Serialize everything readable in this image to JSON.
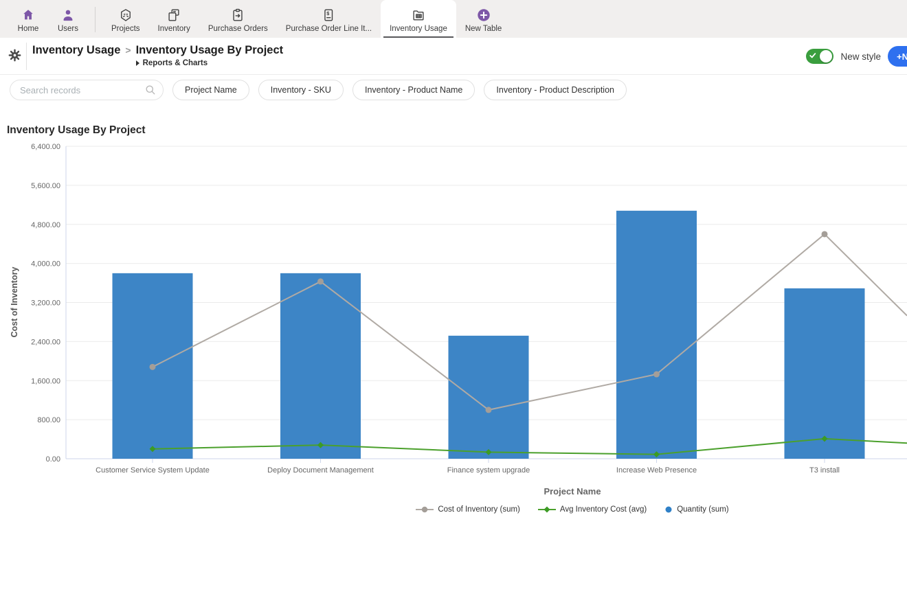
{
  "nav": {
    "items": [
      {
        "label": "Home"
      },
      {
        "label": "Users"
      },
      {
        "label": "Projects"
      },
      {
        "label": "Inventory"
      },
      {
        "label": "Purchase Orders"
      },
      {
        "label": "Purchase Order Line It..."
      },
      {
        "label": "Inventory Usage",
        "active": true
      },
      {
        "label": "New Table"
      }
    ],
    "accent_color": "#7d57a7"
  },
  "breadcrumb": {
    "table": "Inventory Usage",
    "separator": ">",
    "report": "Inventory Usage By Project",
    "section": "Reports & Charts"
  },
  "header_actions": {
    "new_style_label": "New style",
    "toggle_on": true,
    "toggle_color": "#3a9e3e",
    "new_button_label": "+N",
    "new_button_color": "#2e70ef"
  },
  "filters": {
    "search_placeholder": "Search records",
    "search_value": "",
    "chips": [
      "Project Name",
      "Inventory - SKU",
      "Inventory - Product Name",
      "Inventory - Product Description"
    ]
  },
  "chart": {
    "title": "Inventory Usage By Project"
  },
  "chart_data": {
    "type": "combo",
    "title": "Inventory Usage By Project",
    "categories": [
      "Customer Service System Update",
      "Deploy Document Management",
      "Finance system upgrade",
      "Increase Web Presence",
      "T3 install"
    ],
    "series": [
      {
        "name": "Quantity (sum)",
        "type": "bar",
        "color": "#3d85c6",
        "values": [
          3800,
          3800,
          2520,
          5080,
          3490
        ]
      },
      {
        "name": "Cost of Inventory (sum)",
        "type": "line",
        "color": "#b0aaa4",
        "marker": "circle",
        "marker_color": "#a49e98",
        "values": [
          1880,
          3630,
          1000,
          1730,
          4600
        ],
        "edge_value": 2930
      },
      {
        "name": "Avg Inventory Cost (avg)",
        "type": "line",
        "color": "#4ba02c",
        "marker": "diamond",
        "marker_color": "#3c9b24",
        "values": [
          200,
          280,
          135,
          90,
          410
        ],
        "edge_value": 320
      }
    ],
    "xlabel": "Project Name",
    "ylabel": "Cost of Inventory",
    "ylim": [
      0,
      6400
    ],
    "y_tick_labels": [
      "0.00",
      "800.00",
      "1,600.00",
      "2,400.00",
      "3,200.00",
      "4,000.00",
      "4,800.00",
      "5,600.00",
      "6,400.00"
    ],
    "grid": "horizontal",
    "legend_position": "bottom",
    "clipped_note": "plot is clipped at right viewport edge; both lines continue toward off-screen categories"
  }
}
